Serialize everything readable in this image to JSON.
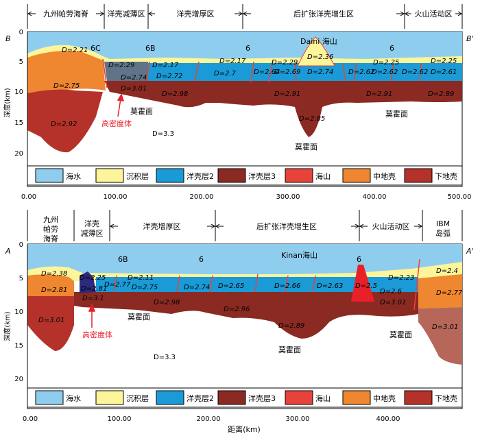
{
  "top": {
    "regions": [
      "九州帕劳海脊",
      "洋壳减薄区",
      "洋壳增厚区",
      "后扩张洋壳增生区",
      "火山活动区"
    ],
    "corner_left": "B",
    "corner_right": "B'",
    "features": [
      "6C",
      "6B",
      "6",
      "6"
    ],
    "seamount_label": "Daini 海山",
    "density_labels": [
      "D=2.21",
      "D=2.75",
      "D=2.92",
      "D=2.29",
      "D=2.74",
      "D=3.01",
      "D=2.17",
      "D=2.72",
      "D=2.98",
      "D=2.17",
      "D=2.7",
      "D=2.64",
      "D=2.29",
      "D=2.69",
      "D=2.36",
      "D=2.74",
      "D=2.91",
      "D=2.85",
      "D=2.62",
      "D=2.62",
      "D=2.25",
      "D=2.62",
      "D=2.61",
      "D=2.25",
      "D=2.91",
      "D=2.89",
      "D=3.3"
    ],
    "moho_labels": [
      "莫霍面",
      "莫霍面",
      "莫霍面"
    ],
    "high_density": "高密度体",
    "y_ticks": [
      "0",
      "5",
      "10",
      "15",
      "20"
    ],
    "x_ticks": [
      "0.00",
      "100.00",
      "200.00",
      "300.00",
      "400.00",
      "500.00"
    ],
    "ylabel": "深度(km)"
  },
  "bottom": {
    "regions": [
      "九州\n帕劳\n海脊",
      "洋壳\n减薄区",
      "洋壳增厚区",
      "后扩张洋壳增生区",
      "火山活动区",
      "IBM\n岛弧"
    ],
    "corner_left": "A",
    "corner_right": "A'",
    "features": [
      "6B",
      "6",
      "6"
    ],
    "seamount_label": "Kinan海山",
    "density_labels": [
      "D=2.38",
      "D=2.81",
      "D=3.01",
      "D=2.25",
      "D=2.81",
      "D=3.1",
      "D=2.77",
      "D=2.11",
      "D=2.75",
      "D=2.98",
      "D=2.74",
      "D=2.65",
      "D=2.96",
      "D=2.66",
      "D=2.63",
      "D=2.89",
      "D=2.5",
      "D=2.23",
      "D=2.6",
      "D=3.01",
      "D=2.4",
      "D=2.77",
      "D=3.01",
      "D=3.3"
    ],
    "moho_labels": [
      "莫霍面",
      "莫霍面",
      "莫霍面"
    ],
    "high_density": "高密度体",
    "y_ticks": [
      "0",
      "5",
      "10",
      "15",
      "20"
    ],
    "x_ticks": [
      "0.00",
      "100.00",
      "200.00",
      "300.00",
      "400.00"
    ],
    "xlabel": "距离(km)",
    "ylabel": "深度(km)"
  },
  "legend": [
    "海水",
    "沉积层",
    "洋壳层2",
    "洋壳层3",
    "海山",
    "中地壳",
    "下地壳"
  ],
  "colors": {
    "seawater": "#8fcdee",
    "sediment": "#fdf59a",
    "layer2": "#1a9ad6",
    "layer3": "#8b2a22",
    "seamount": "#e8433a",
    "middle": "#ef8630",
    "lower": "#b5322a",
    "thinned": "#5f7488"
  }
}
